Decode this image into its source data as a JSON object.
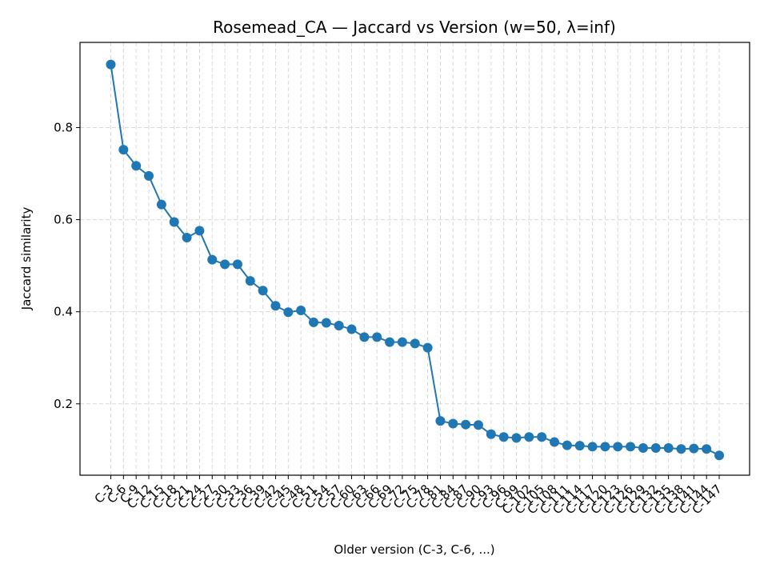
{
  "chart_data": {
    "type": "line",
    "title": "Rosemead_CA — Jaccard vs Version (w=50, λ=inf)",
    "xlabel": "Older version (C-3, C-6, ...)",
    "ylabel": "Jaccard similarity",
    "ylim": [
      0.045,
      0.985
    ],
    "yticks": [
      0.2,
      0.4,
      0.6,
      0.8
    ],
    "ytick_labels": [
      "0.2",
      "0.4",
      "0.6",
      "0.8"
    ],
    "grid": true,
    "categories": [
      "C-3",
      "C-6",
      "C-9",
      "C-12",
      "C-15",
      "C-18",
      "C-21",
      "C-24",
      "C-27",
      "C-30",
      "C-33",
      "C-36",
      "C-39",
      "C-42",
      "C-45",
      "C-48",
      "C-51",
      "C-54",
      "C-57",
      "C-60",
      "C-63",
      "C-66",
      "C-69",
      "C-72",
      "C-75",
      "C-78",
      "C-81",
      "C-84",
      "C-87",
      "C-90",
      "C-93",
      "C-96",
      "C-99",
      "C-102",
      "C-105",
      "C-108",
      "C-111",
      "C-114",
      "C-117",
      "C-120",
      "C-123",
      "C-126",
      "C-129",
      "C-132",
      "C-135",
      "C-138",
      "C-141",
      "C-144",
      "C-147"
    ],
    "series": [
      {
        "values": [
          0.937,
          0.752,
          0.717,
          0.695,
          0.633,
          0.595,
          0.561,
          0.576,
          0.513,
          0.503,
          0.503,
          0.467,
          0.446,
          0.413,
          0.399,
          0.403,
          0.377,
          0.376,
          0.37,
          0.362,
          0.345,
          0.345,
          0.334,
          0.334,
          0.331,
          0.322,
          0.163,
          0.157,
          0.155,
          0.154,
          0.134,
          0.128,
          0.126,
          0.128,
          0.128,
          0.117,
          0.11,
          0.109,
          0.107,
          0.107,
          0.107,
          0.107,
          0.104,
          0.104,
          0.104,
          0.102,
          0.103,
          0.102,
          0.088
        ],
        "color": "#1f77b4"
      }
    ]
  }
}
